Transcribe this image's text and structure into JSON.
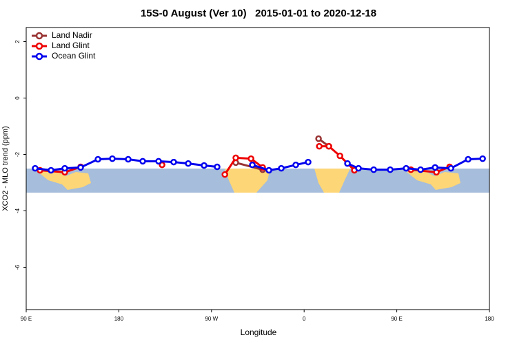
{
  "chart_data": {
    "type": "line",
    "title": "15S-0 August (Ver 10)   2015-01-01 to 2020-12-18",
    "x_label": "Longitude",
    "y_label": "XCO2 - MLO trend (ppm)",
    "xlim": [
      90,
      540
    ],
    "ylim": [
      -7.5,
      2.5
    ],
    "xticks": [
      {
        "value": 90,
        "label": "90 E"
      },
      {
        "value": 180,
        "label": "180"
      },
      {
        "value": 270,
        "label": "90 W"
      },
      {
        "value": 360,
        "label": "0"
      },
      {
        "value": 450,
        "label": "90 E"
      },
      {
        "value": 540,
        "label": "180"
      }
    ],
    "yticks": [
      2,
      0,
      -2,
      -4,
      -6
    ],
    "legend": "top-left",
    "series": [
      {
        "name": "Land Nadir",
        "color": "#993333",
        "x": [
          293.6,
          319.7,
          null,
          374,
          384
        ],
        "values": [
          -2.29,
          -2.54,
          null,
          -1.44,
          -1.71
        ]
      },
      {
        "name": "Land Glint",
        "color": "#ee0000",
        "x": [
          103.4,
          127.5,
          142.9,
          null,
          222,
          null,
          283,
          293.6,
          308.4,
          319.7,
          null,
          374.7,
          384,
          394.8,
          408.8,
          null,
          463.7,
          488.5,
          501.3
        ],
        "values": [
          -2.56,
          -2.63,
          -2.44,
          null,
          -2.37,
          null,
          -2.71,
          -2.12,
          -2.15,
          -2.46,
          null,
          -1.71,
          -1.71,
          -2.05,
          -2.56,
          null,
          -2.54,
          -2.63,
          -2.44
        ]
      },
      {
        "name": "Ocean Glint",
        "color": "#0000ee",
        "x": [
          98.7,
          114.1,
          127.5,
          142.9,
          159.7,
          173.7,
          189.1,
          203.2,
          218.6,
          233.3,
          247.4,
          262.8,
          275.5,
          null,
          309.7,
          325.8,
          337.8,
          351.9,
          363.9,
          null,
          402.1,
          412.8,
          427.6,
          443.6,
          459.1,
          473.1,
          487.2,
          502.6,
          519.3,
          533.4
        ],
        "values": [
          -2.49,
          -2.56,
          -2.49,
          -2.46,
          -2.17,
          -2.15,
          -2.17,
          -2.24,
          -2.24,
          -2.27,
          -2.32,
          -2.39,
          -2.44,
          null,
          -2.37,
          -2.56,
          -2.49,
          -2.37,
          -2.27,
          null,
          -2.32,
          -2.49,
          -2.54,
          -2.54,
          -2.49,
          -2.54,
          -2.46,
          -2.49,
          -2.17,
          -2.15
        ]
      }
    ]
  }
}
